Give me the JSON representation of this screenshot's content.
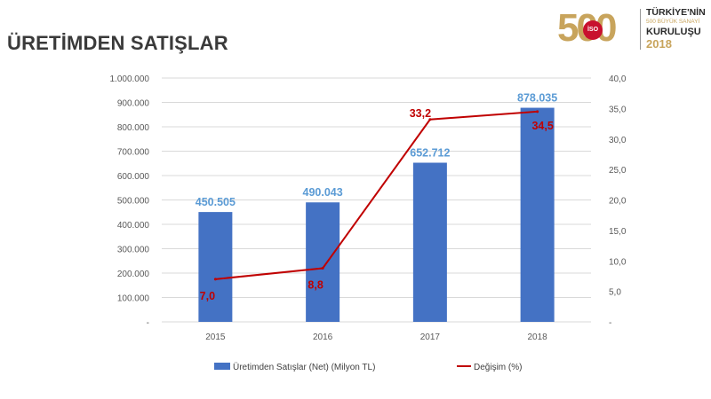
{
  "slide": {
    "title": "ÜRETİMDEN SATIŞLAR"
  },
  "logo": {
    "number": "500",
    "badge": "İSO",
    "line1": "TÜRKİYE'NİN",
    "line2": "500 BÜYÜK SANAYİ",
    "line3": "KURULUŞU",
    "line4": "2018"
  },
  "colors": {
    "bar": "#4472c4",
    "bar_label": "#5b9bd5",
    "line": "#c00000",
    "line_label": "#c00000"
  },
  "chart_data": {
    "type": "bar",
    "title": "",
    "categories": [
      "2015",
      "2016",
      "2017",
      "2018"
    ],
    "series": [
      {
        "name": "Üretimden Satışlar (Net) (Milyon TL)",
        "type": "bar",
        "axis": "left",
        "values": [
          450505,
          490043,
          652712,
          878035
        ],
        "labels": [
          "450.505",
          "490.043",
          "652.712",
          "878.035"
        ]
      },
      {
        "name": "Değişim (%)",
        "type": "line",
        "axis": "right",
        "values": [
          7.0,
          8.8,
          33.2,
          34.5
        ],
        "labels": [
          "7,0",
          "8,8",
          "33,2",
          "34,5"
        ]
      }
    ],
    "y_left": {
      "range": [
        0,
        1000000
      ],
      "ticks": [
        "-",
        "100.000",
        "200.000",
        "300.000",
        "400.000",
        "500.000",
        "600.000",
        "700.000",
        "800.000",
        "900.000",
        "1.000.000"
      ]
    },
    "y_right": {
      "range": [
        0,
        40
      ],
      "ticks": [
        "-",
        "5,0",
        "10,0",
        "15,0",
        "20,0",
        "25,0",
        "30,0",
        "35,0",
        "40,0"
      ]
    },
    "grid": true,
    "legend": "bottom"
  }
}
